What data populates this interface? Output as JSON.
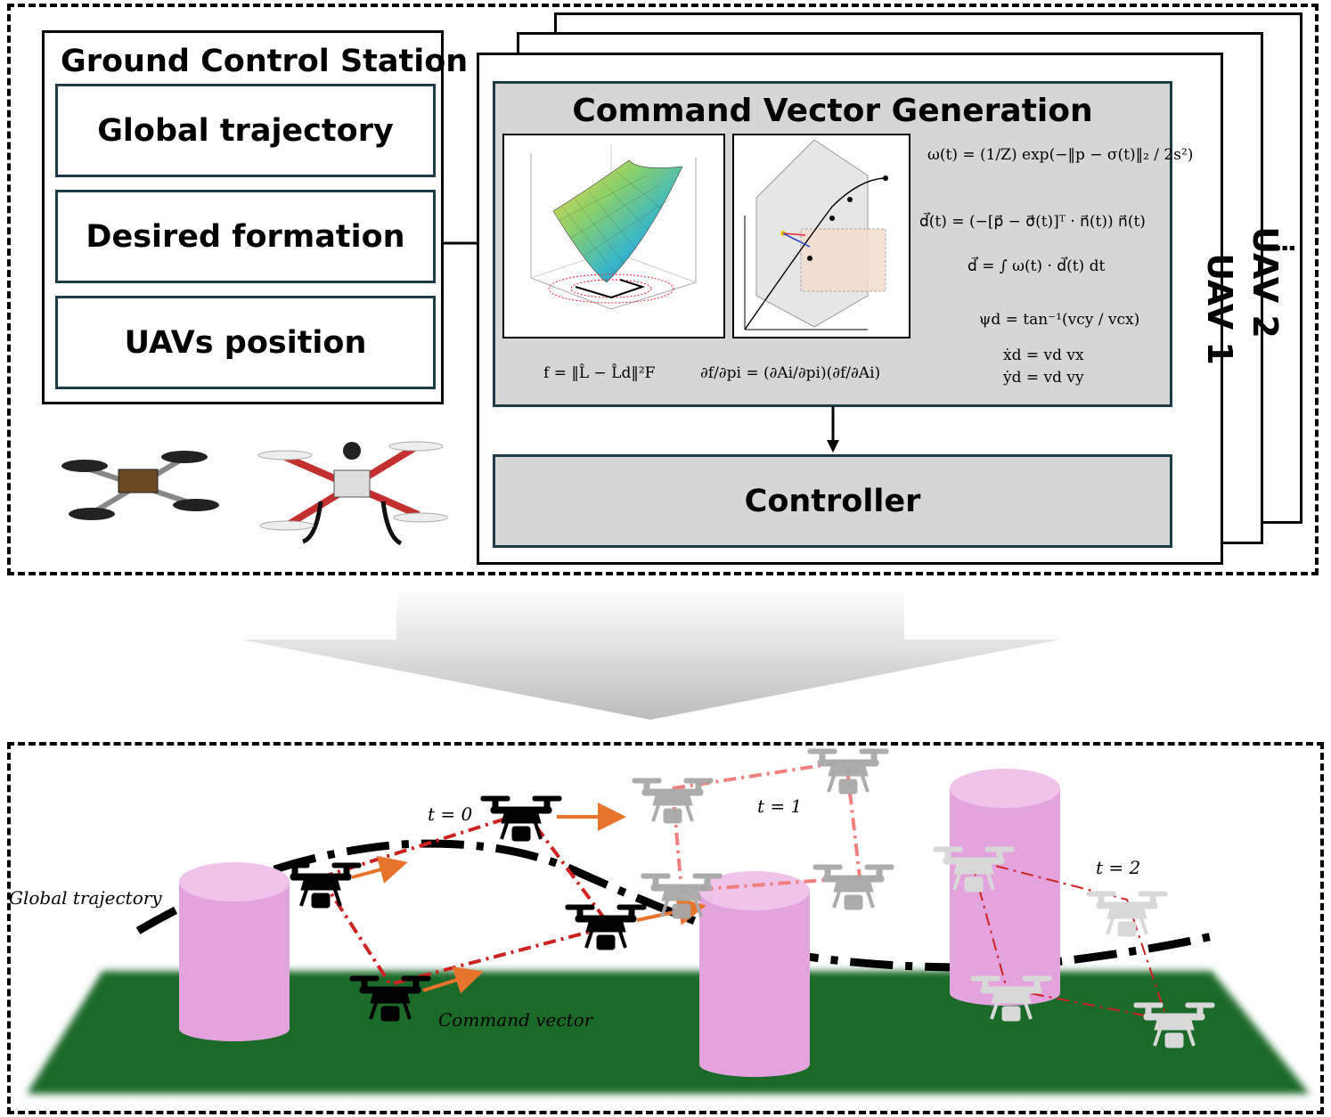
{
  "gcs": {
    "title": "Ground Control Station",
    "items": [
      "Global trajectory",
      "Desired formation",
      "UAVs position"
    ]
  },
  "uav_stack": {
    "labels": [
      "UAV 1",
      "UAV 2"
    ],
    "more": "⋮"
  },
  "cvg": {
    "title": "Command Vector Generation",
    "equations": {
      "omega": "ω(t) = (1/Z) exp(−‖p − σ(t)‖₂ / 2s²)",
      "d_vec": "d⃗(t) = (−[p⃗ − σ⃗(t)]ᵀ · n⃗(t)) n⃗(t)",
      "d_int": "d⃗ = ∫ ω(t) · d⃗(t) dt",
      "psi": "ψd = tan⁻¹(vcy / vcx)",
      "xdot": "ẋd = vd vx",
      "ydot": "ẏd = vd vy",
      "f": "f = ‖L̂ − L̂d‖²F",
      "grad": "∂f/∂pi = (∂Ai/∂pi)(∂f/∂Ai)"
    }
  },
  "controller": {
    "label": "Controller"
  },
  "scene": {
    "global_trajectory_label": "Global trajectory",
    "command_vector_label": "Command vector",
    "times": [
      "t = 0",
      "t = 1",
      "t = 2"
    ]
  },
  "colors": {
    "ground": "#1f6b2a",
    "cylinder": "#e3a4de",
    "cylinder_top": "#efc3ea",
    "formation_line": "#cc2222",
    "command_arrow": "#e8732a",
    "panel_gray": "#d6d6d6"
  }
}
